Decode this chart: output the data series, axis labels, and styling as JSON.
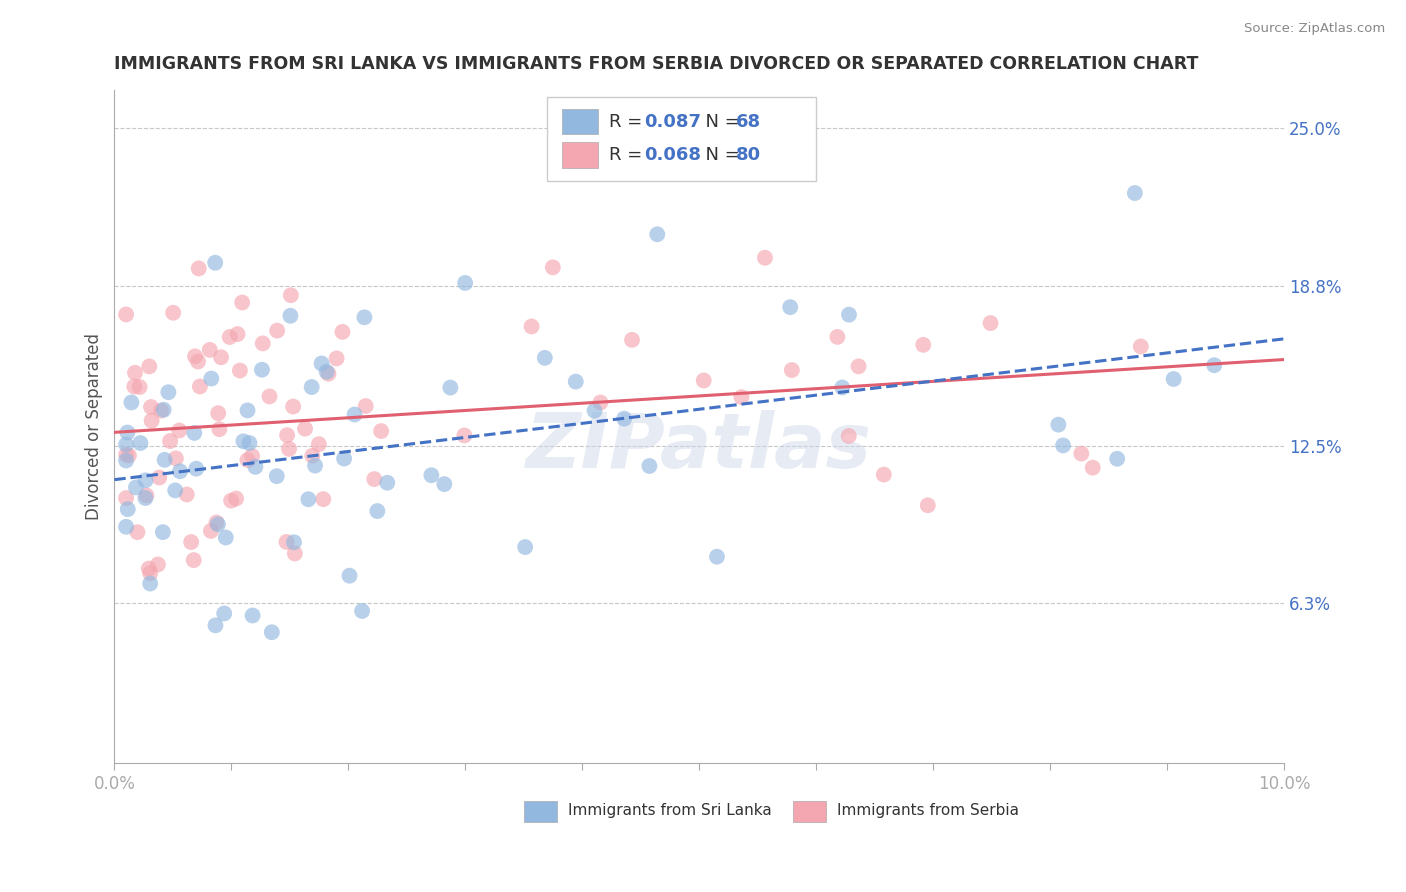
{
  "title": "IMMIGRANTS FROM SRI LANKA VS IMMIGRANTS FROM SERBIA DIVORCED OR SEPARATED CORRELATION CHART",
  "source": "Source: ZipAtlas.com",
  "ylabel": "Divorced or Separated",
  "xlim": [
    0.0,
    0.1
  ],
  "ylim": [
    0.0,
    0.265
  ],
  "right_yticks": [
    0.063,
    0.125,
    0.188,
    0.25
  ],
  "right_yticklabels": [
    "6.3%",
    "12.5%",
    "18.8%",
    "25.0%"
  ],
  "sri_lanka_color": "#92b8e0",
  "serbia_color": "#f4a7b0",
  "sri_lanka_line_color": "#4472c4",
  "serbia_line_color": "#e06070",
  "sri_lanka_R": 0.087,
  "sri_lanka_N": 68,
  "serbia_R": 0.068,
  "serbia_N": 80,
  "legend_label_1": "Immigrants from Sri Lanka",
  "legend_label_2": "Immigrants from Serbia",
  "watermark": "ZIPatlas"
}
